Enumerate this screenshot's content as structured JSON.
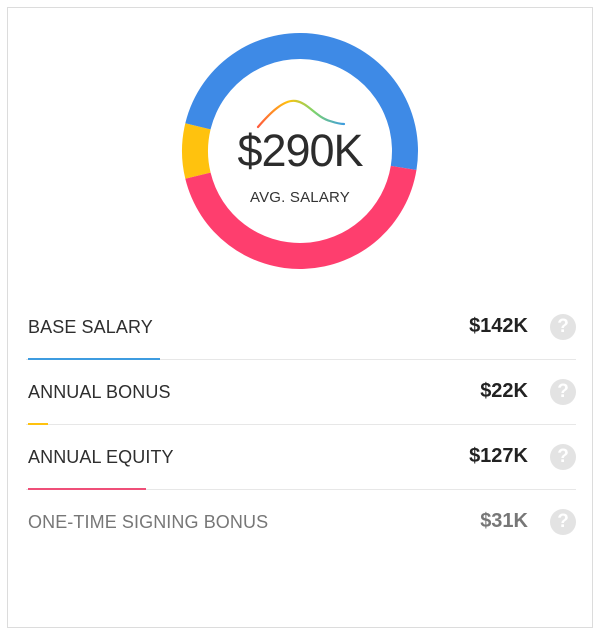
{
  "summary": {
    "amount": "$290K",
    "label": "AVG. SALARY"
  },
  "chart_data": {
    "type": "pie",
    "style": "donut",
    "title": "",
    "categories": [
      "BASE SALARY",
      "ANNUAL BONUS",
      "ANNUAL EQUITY"
    ],
    "values": [
      142,
      22,
      127
    ],
    "colors": [
      "#3e8ae6",
      "#ffc20e",
      "#fe3e6e"
    ]
  },
  "breakdown": [
    {
      "label": "BASE SALARY",
      "value": "$142K",
      "amount_k": 142,
      "bar_color": "#3e9ce0",
      "muted": false,
      "help": "?"
    },
    {
      "label": "ANNUAL BONUS",
      "value": "$22K",
      "amount_k": 22,
      "bar_color": "#ffc20e",
      "muted": false,
      "help": "?"
    },
    {
      "label": "ANNUAL EQUITY",
      "value": "$127K",
      "amount_k": 127,
      "bar_color": "#ef4f78",
      "muted": false,
      "help": "?"
    },
    {
      "label": "ONE-TIME SIGNING BONUS",
      "value": "$31K",
      "amount_k": 31,
      "bar_color": "",
      "muted": true,
      "help": "?"
    }
  ]
}
